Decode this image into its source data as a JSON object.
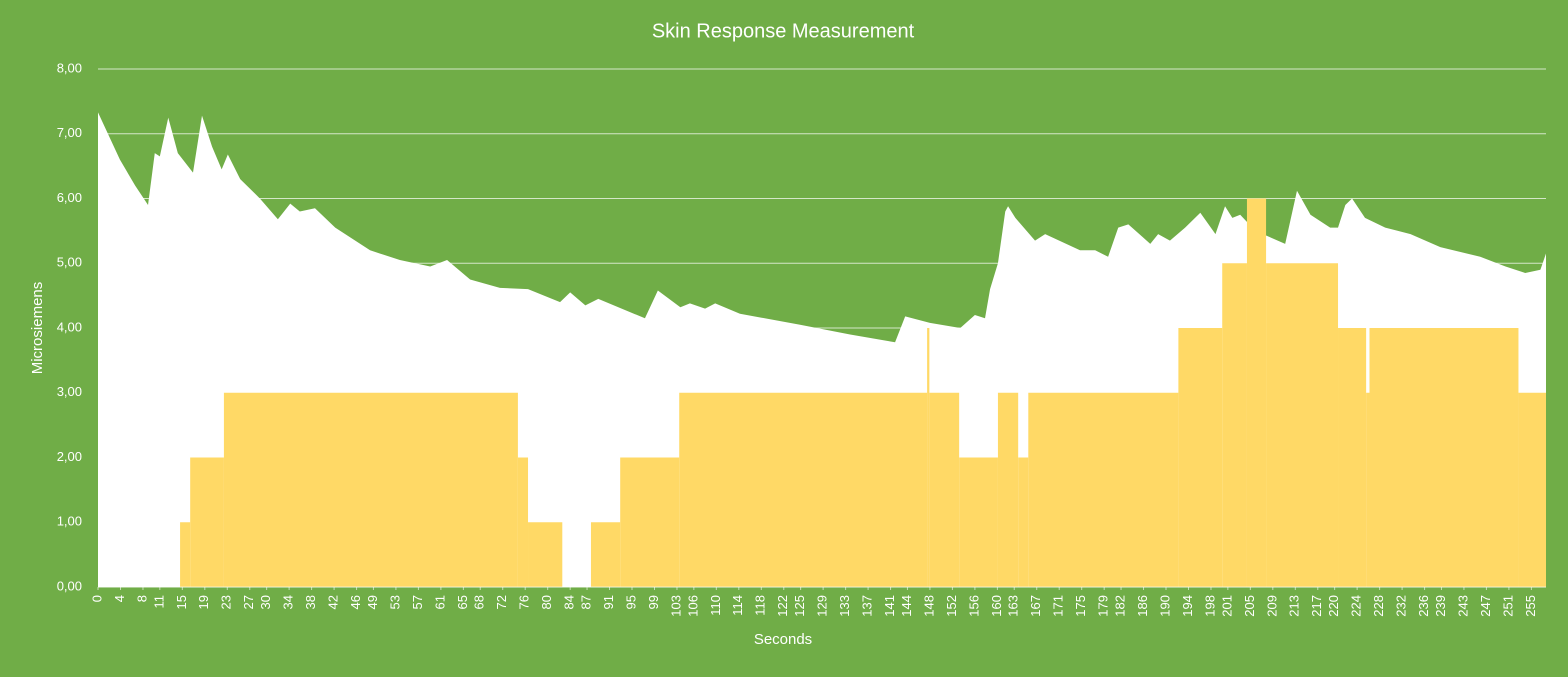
{
  "chart_data": {
    "type": "area",
    "title": "Skin Response Measurement",
    "x_label": "Seconds",
    "y_label": "Microsiemens",
    "background": "#70ad47",
    "grid": true,
    "xlim": [
      0,
      257.6
    ],
    "ylim": [
      0,
      8
    ],
    "xticks": [
      0,
      4,
      8,
      11,
      15,
      19,
      23,
      27,
      30,
      34,
      38,
      42,
      46,
      49,
      53,
      57,
      61,
      65,
      68,
      72,
      76,
      80,
      84,
      87,
      91,
      95,
      99,
      103,
      106,
      110,
      114,
      118,
      122,
      125,
      129,
      133,
      137,
      141,
      144,
      148,
      152,
      156,
      160,
      163,
      167,
      171,
      175,
      179,
      182,
      186,
      190,
      194,
      198,
      201,
      205,
      209,
      213,
      217,
      220,
      224,
      228,
      232,
      236,
      239,
      243,
      247,
      251,
      255
    ],
    "yticks": [
      {
        "value": 0,
        "label": "0,00"
      },
      {
        "value": 1,
        "label": "1,00"
      },
      {
        "value": 2,
        "label": "2,00"
      },
      {
        "value": 3,
        "label": "3,00"
      },
      {
        "value": 4,
        "label": "4,00"
      },
      {
        "value": 5,
        "label": "5,00"
      },
      {
        "value": 6,
        "label": "6,00"
      },
      {
        "value": 7,
        "label": "7,00"
      },
      {
        "value": 8,
        "label": "8,00"
      }
    ],
    "series": [
      {
        "color": "#ffffff",
        "style": "area",
        "x": [
          0,
          3.9,
          6.6,
          8.9,
          10.1,
          11,
          12.5,
          14.2,
          16.9,
          18.5,
          20.3,
          22,
          23.1,
          25.3,
          28.8,
          32,
          34.2,
          35.9,
          38.6,
          42.2,
          48.4,
          53.7,
          59.1,
          62.1,
          66.2,
          71.5,
          76.5,
          82.2,
          84,
          86.7,
          89,
          97.3,
          99.6,
          103.6,
          105.3,
          108,
          109.8,
          114.2,
          124.9,
          133.8,
          141.8,
          143.6,
          148,
          153.4,
          156,
          157.8,
          158.7,
          160.1,
          161.4,
          161.9,
          163.2,
          166.7,
          168.5,
          174.7,
          177.4,
          179.7,
          181.5,
          183.3,
          187.2,
          188.6,
          190.7,
          193.4,
          196.1,
          198.8,
          200.5,
          201.8,
          203.2,
          205.9,
          211.2,
          213.3,
          215.7,
          219.2,
          220.6,
          221.9,
          223.1,
          225.4,
          229,
          233.5,
          238.8,
          245.9,
          250.4,
          253.9,
          256.6,
          257.6
        ],
        "values": [
          7.33,
          6.6,
          6.2,
          5.9,
          6.7,
          6.65,
          7.25,
          6.7,
          6.4,
          7.28,
          6.8,
          6.45,
          6.68,
          6.3,
          6.0,
          5.68,
          5.92,
          5.8,
          5.85,
          5.55,
          5.2,
          5.05,
          4.95,
          5.05,
          4.75,
          4.62,
          4.6,
          4.4,
          4.55,
          4.35,
          4.45,
          4.15,
          4.58,
          4.32,
          4.38,
          4.3,
          4.38,
          4.22,
          4.05,
          3.9,
          3.78,
          4.18,
          4.08,
          4.0,
          4.2,
          4.15,
          4.6,
          5.0,
          5.8,
          5.88,
          5.7,
          5.35,
          5.45,
          5.2,
          5.2,
          5.1,
          5.55,
          5.6,
          5.3,
          5.45,
          5.35,
          5.55,
          5.78,
          5.45,
          5.88,
          5.7,
          5.75,
          5.5,
          5.3,
          6.12,
          5.75,
          5.55,
          5.55,
          5.9,
          6.0,
          5.7,
          5.55,
          5.45,
          5.25,
          5.1,
          4.95,
          4.85,
          4.9,
          5.15
        ]
      },
      {
        "color": "#ffd966",
        "style": "step",
        "x": [
          0,
          14.6,
          16.4,
          22.4,
          74.7,
          76.5,
          82.6,
          87.7,
          92.9,
          103.4,
          147.5,
          147.9,
          153.2,
          160.1,
          163.7,
          165.5,
          192.2,
          200,
          204.4,
          207.8,
          220.6,
          225.6,
          226.2,
          252.7
        ],
        "values": [
          0,
          1,
          2,
          3,
          2,
          1,
          0,
          1,
          2,
          3,
          4,
          3,
          2,
          3,
          2,
          3,
          4,
          5,
          6,
          5,
          4,
          3,
          4,
          3
        ]
      }
    ]
  }
}
